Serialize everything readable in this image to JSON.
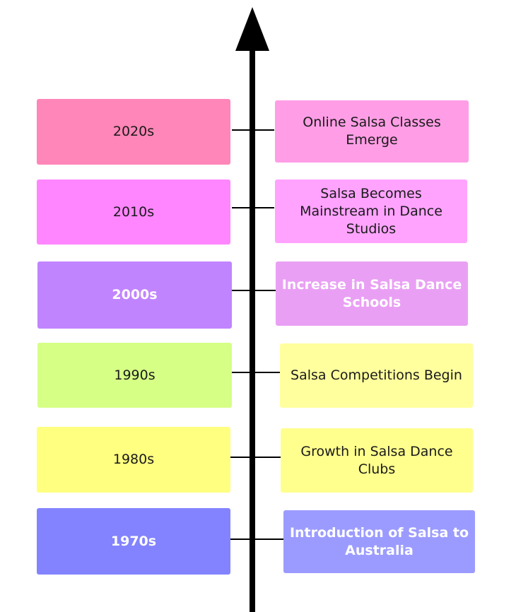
{
  "timeline": {
    "entries": [
      {
        "decade": "2020s",
        "event": "Online Salsa Classes Emerge",
        "decade_color": "#ff86b8",
        "event_color": "#ff9ee6",
        "light_text": false
      },
      {
        "decade": "2010s",
        "event": "Salsa Becomes Mainstream in Dance Studios",
        "decade_color": "#ff86ff",
        "event_color": "#ffa3ff",
        "light_text": false
      },
      {
        "decade": "2000s",
        "event": "Increase in Salsa Dance Schools",
        "decade_color": "#c184ff",
        "event_color": "#e9a0f4",
        "light_text": true
      },
      {
        "decade": "1990s",
        "event": "Salsa Competitions Begin",
        "decade_color": "#d6ff86",
        "event_color": "#ffff9e",
        "light_text": false
      },
      {
        "decade": "1980s",
        "event": "Growth in Salsa Dance Clubs",
        "decade_color": "#ffff80",
        "event_color": "#ffff8e",
        "light_text": false
      },
      {
        "decade": "1970s",
        "event": "Introduction of Salsa to Australia",
        "decade_color": "#8383ff",
        "event_color": "#9b9bff",
        "light_text": true
      }
    ]
  }
}
